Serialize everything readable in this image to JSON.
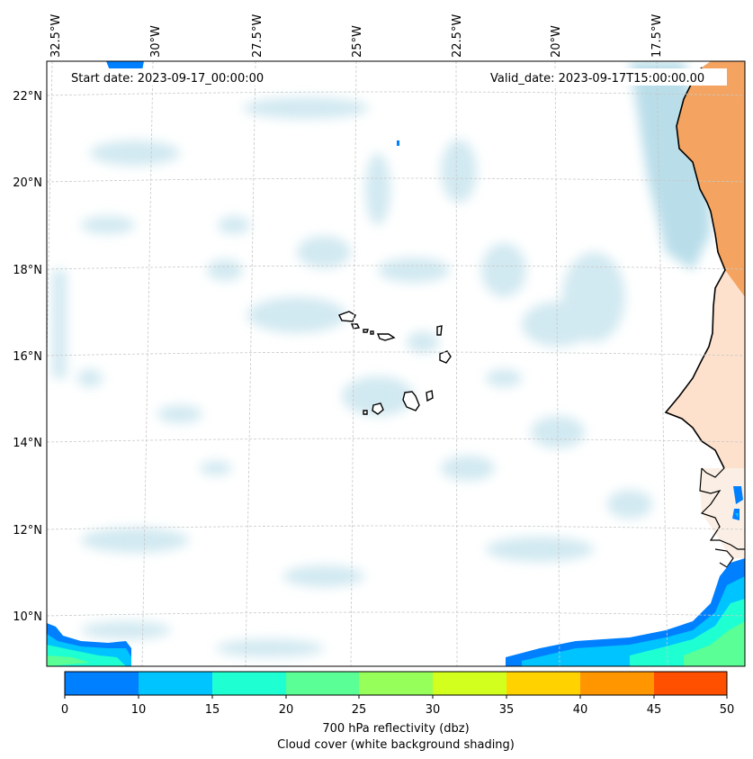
{
  "header": {
    "start_date": "Start date: 2023-09-17_00:00:00",
    "valid_date": "Valid_date: 2023-09-17T15:00:00.00"
  },
  "map": {
    "longitude_labels": [
      "32.5°W",
      "30°W",
      "27.5°W",
      "25°W",
      "22.5°W",
      "20°W",
      "17.5°W"
    ],
    "latitude_labels": [
      "22°N",
      "20°N",
      "18°N",
      "16°N",
      "14°N",
      "12°N",
      "10°N"
    ],
    "colors": {
      "cloud": "#add8e6",
      "land_warm": "#f4a460",
      "coast": "#000000",
      "grid": "#c8c8c8"
    }
  },
  "colorbar": {
    "ticks": [
      "0",
      "10",
      "15",
      "20",
      "25",
      "30",
      "35",
      "40",
      "45",
      "50"
    ],
    "colors": [
      "#0080ff",
      "#00c4ff",
      "#1effd2",
      "#5aff96",
      "#96ff5a",
      "#d2ff1e",
      "#ffd200",
      "#ff9600",
      "#ff5000"
    ],
    "label_line1": "700 hPa reflectivity (dbz)",
    "label_line2": "Cloud cover (white background shading)"
  }
}
